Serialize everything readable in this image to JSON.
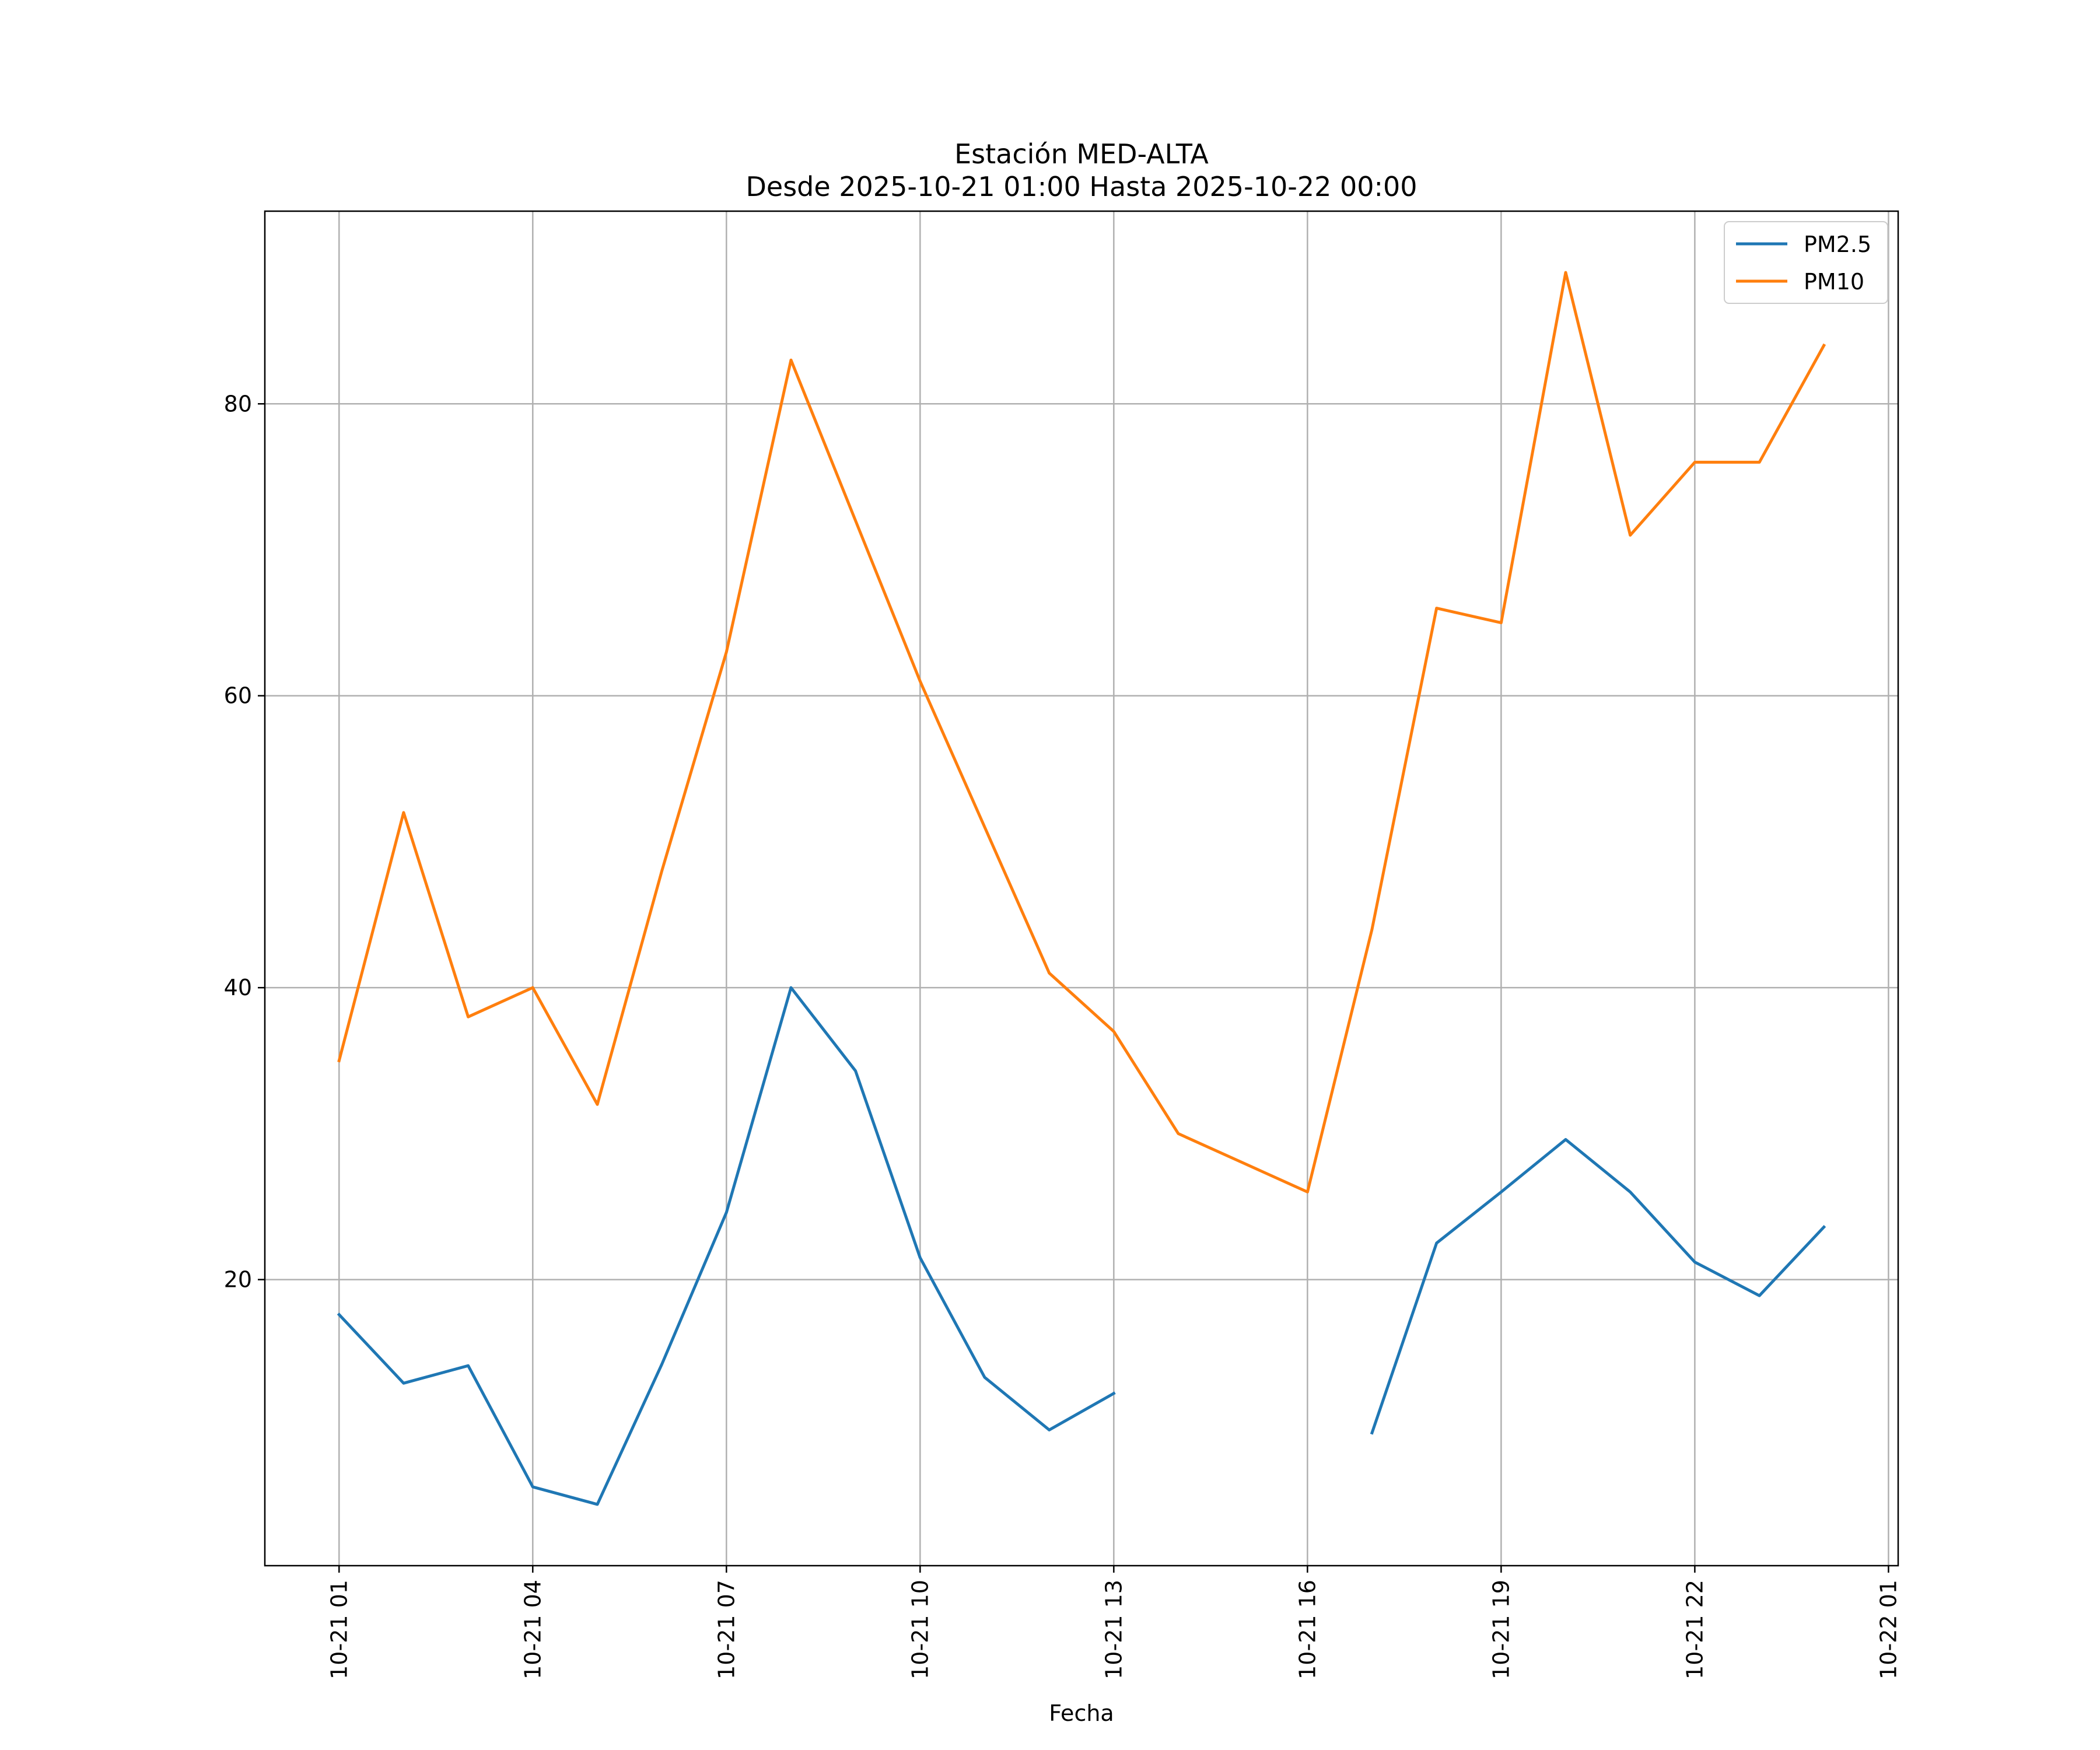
{
  "chart_data": {
    "type": "line",
    "title_line1": "Estación MED-ALTA",
    "title_line2": "Desde 2025-10-21 01:00 Hasta 2025-10-22 00:00",
    "xlabel": "Fecha",
    "ylabel": "",
    "x": [
      "2025-10-21 01:00",
      "2025-10-21 02:00",
      "2025-10-21 03:00",
      "2025-10-21 04:00",
      "2025-10-21 05:00",
      "2025-10-21 06:00",
      "2025-10-21 07:00",
      "2025-10-21 08:00",
      "2025-10-21 09:00",
      "2025-10-21 10:00",
      "2025-10-21 11:00",
      "2025-10-21 12:00",
      "2025-10-21 13:00",
      "2025-10-21 14:00",
      "2025-10-21 15:00",
      "2025-10-21 16:00",
      "2025-10-21 17:00",
      "2025-10-21 18:00",
      "2025-10-21 19:00",
      "2025-10-21 20:00",
      "2025-10-21 21:00",
      "2025-10-21 22:00",
      "2025-10-21 23:00",
      "2025-10-22 00:00"
    ],
    "series": [
      {
        "name": "PM2.5",
        "color": "#1f77b4",
        "values": [
          17.6,
          12.9,
          14.1,
          5.8,
          4.6,
          14.2,
          24.6,
          40.0,
          34.3,
          21.5,
          13.3,
          9.7,
          12.2,
          null,
          null,
          null,
          9.5,
          22.5,
          26.0,
          29.6,
          26.0,
          21.2,
          18.9,
          23.6
        ]
      },
      {
        "name": "PM10",
        "color": "#ff7f0e",
        "values": [
          35,
          52,
          38,
          40,
          32,
          48,
          63,
          83,
          72,
          61,
          51,
          41,
          37,
          30,
          28,
          26,
          44,
          66,
          65,
          89,
          71,
          76,
          76,
          84
        ]
      }
    ],
    "xticks": [
      "10-21 01",
      "10-21 04",
      "10-21 07",
      "10-21 10",
      "10-21 13",
      "10-21 16",
      "10-21 19",
      "10-21 22",
      "10-22 01"
    ],
    "yticks": [
      20,
      40,
      60,
      80
    ],
    "xlim": [
      "2025-10-20 23:51",
      "2025-10-22 01:09"
    ],
    "ylim": [
      0.4,
      93.2
    ],
    "grid": true,
    "legend": "top-right"
  }
}
